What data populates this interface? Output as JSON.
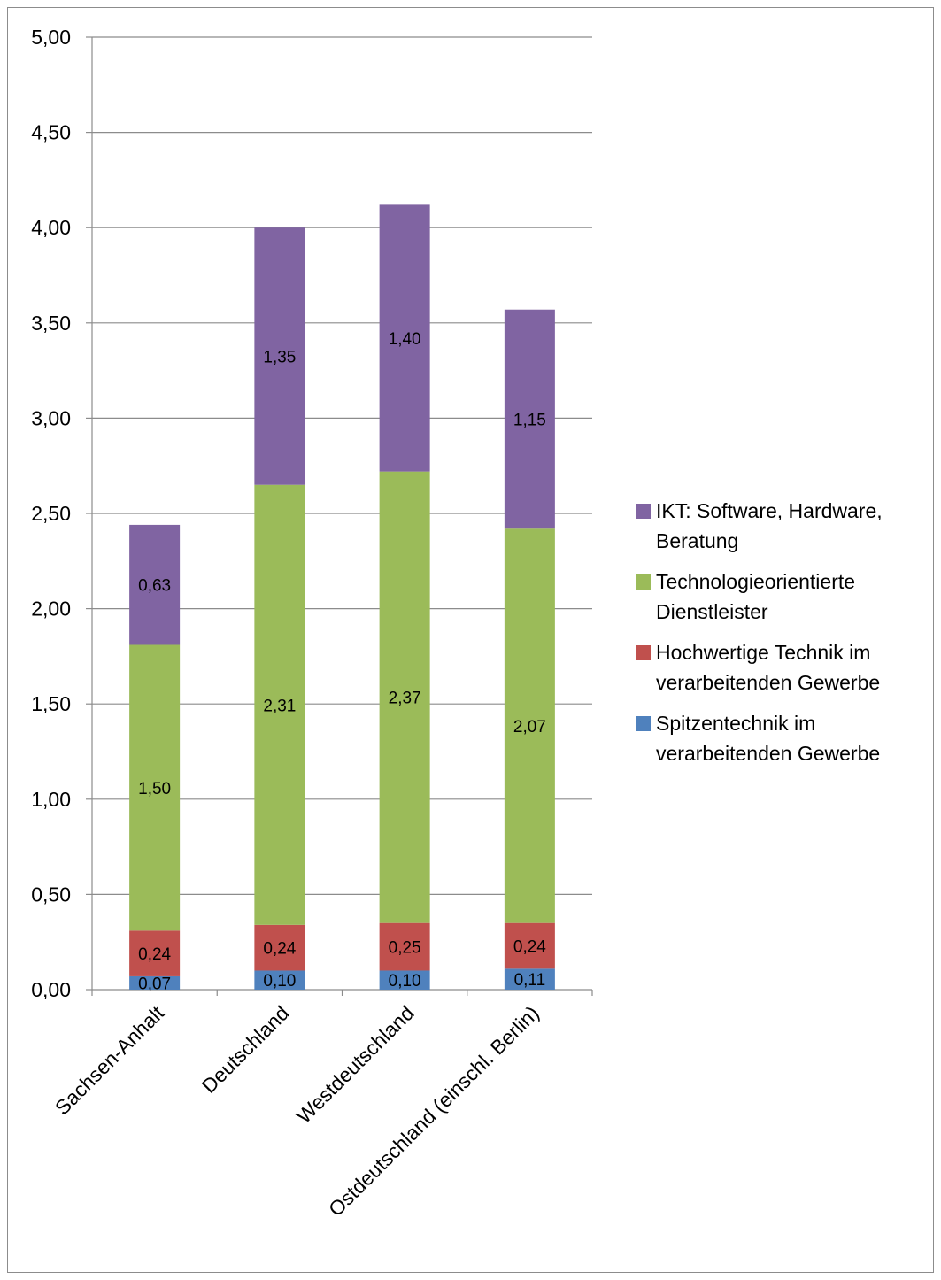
{
  "chart_data": {
    "type": "bar",
    "stacked": true,
    "categories": [
      "Sachsen-Anhalt",
      "Deutschland",
      "Westdeutschland",
      "Ostdeutschland (einschl. Berlin)"
    ],
    "series": [
      {
        "name": "Spitzentechnik im verarbeitenden Gewerbe",
        "color": "#4f81bd",
        "values": [
          0.07,
          0.1,
          0.1,
          0.11
        ],
        "labels": [
          "0,07",
          "0,10",
          "0,10",
          "0,11"
        ]
      },
      {
        "name": "Hochwertige Technik im verarbeitenden Gewerbe",
        "color": "#c0504d",
        "values": [
          0.24,
          0.24,
          0.25,
          0.24
        ],
        "labels": [
          "0,24",
          "0,24",
          "0,25",
          "0,24"
        ]
      },
      {
        "name": "Technologieorientierte Dienstleister",
        "color": "#9bbb59",
        "values": [
          1.5,
          2.31,
          2.37,
          2.07
        ],
        "labels": [
          "1,50",
          "2,31",
          "2,37",
          "2,07"
        ]
      },
      {
        "name": "IKT: Software, Hardware, Beratung",
        "color": "#8064a2",
        "values": [
          0.63,
          1.35,
          1.4,
          1.15
        ],
        "labels": [
          "0,63",
          "1,35",
          "1,40",
          "1,15"
        ]
      }
    ],
    "ylim": [
      0,
      5
    ],
    "yticks": [
      "0,00",
      "0,50",
      "1,00",
      "1,50",
      "2,00",
      "2,50",
      "3,00",
      "3,50",
      "4,00",
      "4,50",
      "5,00"
    ],
    "grid": true,
    "legend_position": "right",
    "title": "",
    "xlabel": "",
    "ylabel": ""
  },
  "legend": {
    "items": [
      {
        "label": "IKT: Software, Hardware,\nBeratung",
        "color": "#8064a2"
      },
      {
        "label": "Technologieorientierte\nDienstleister",
        "color": "#9bbb59"
      },
      {
        "label": "Hochwertige Technik im\nverarbeitenden Gewerbe",
        "color": "#c0504d"
      },
      {
        "label": "Spitzentechnik im\nverarbeitenden Gewerbe",
        "color": "#4f81bd"
      }
    ]
  }
}
